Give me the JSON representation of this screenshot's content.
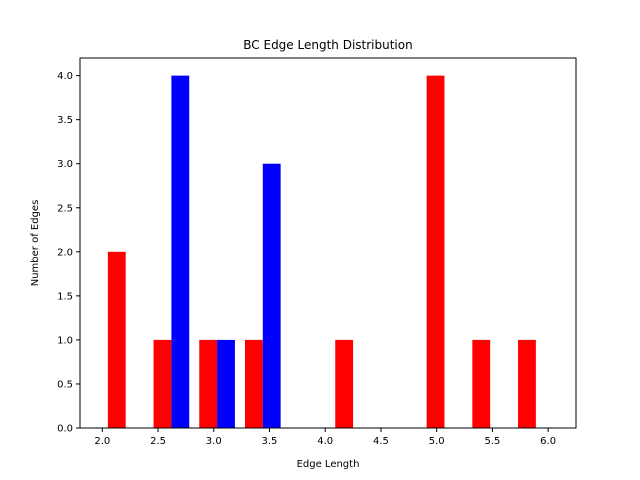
{
  "chart_data": {
    "type": "bar",
    "title": "BC Edge Length Distribution",
    "xlabel": "Edge Length",
    "ylabel": "Number of Edges",
    "xlim": [
      1.8,
      6.25
    ],
    "ylim": [
      0,
      4.2
    ],
    "xticks": [
      "2.0",
      "2.5",
      "3.0",
      "3.5",
      "4.0",
      "4.5",
      "5.0",
      "5.5",
      "6.0"
    ],
    "yticks": [
      "0.0",
      "0.5",
      "1.0",
      "1.5",
      "2.0",
      "2.5",
      "3.0",
      "3.5",
      "4.0"
    ],
    "grid": false,
    "bar_width": 0.16,
    "series": [
      {
        "color": "#ff0000",
        "bars": [
          {
            "x": 2.13,
            "value": 2
          },
          {
            "x": 2.54,
            "value": 1
          },
          {
            "x": 2.95,
            "value": 1
          },
          {
            "x": 3.36,
            "value": 1
          },
          {
            "x": 4.17,
            "value": 1
          },
          {
            "x": 4.99,
            "value": 4
          },
          {
            "x": 5.4,
            "value": 1
          },
          {
            "x": 5.81,
            "value": 1
          }
        ]
      },
      {
        "color": "#0000ff",
        "bars": [
          {
            "x": 2.7,
            "value": 4
          },
          {
            "x": 3.11,
            "value": 1
          },
          {
            "x": 3.52,
            "value": 3
          }
        ]
      }
    ]
  }
}
